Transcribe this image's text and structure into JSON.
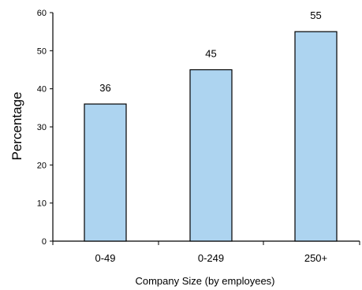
{
  "chart_data": {
    "type": "bar",
    "title": "",
    "xlabel": "Company Size (by employees)",
    "ylabel": "Percentage",
    "categories": [
      "0-49",
      "0-249",
      "250+"
    ],
    "values": [
      36,
      45,
      55
    ],
    "data_labels": [
      "36",
      "45",
      "55"
    ],
    "ylim": [
      0,
      60
    ],
    "yticks": [
      0,
      10,
      20,
      30,
      40,
      50,
      60
    ],
    "ytick_labels": [
      "0",
      "10",
      "20",
      "30",
      "40",
      "50",
      "60"
    ],
    "grid": false,
    "legend": "none",
    "colors": {
      "bar_fill": "#add4f0",
      "bar_stroke": "#000000",
      "axis": "#000000"
    }
  }
}
